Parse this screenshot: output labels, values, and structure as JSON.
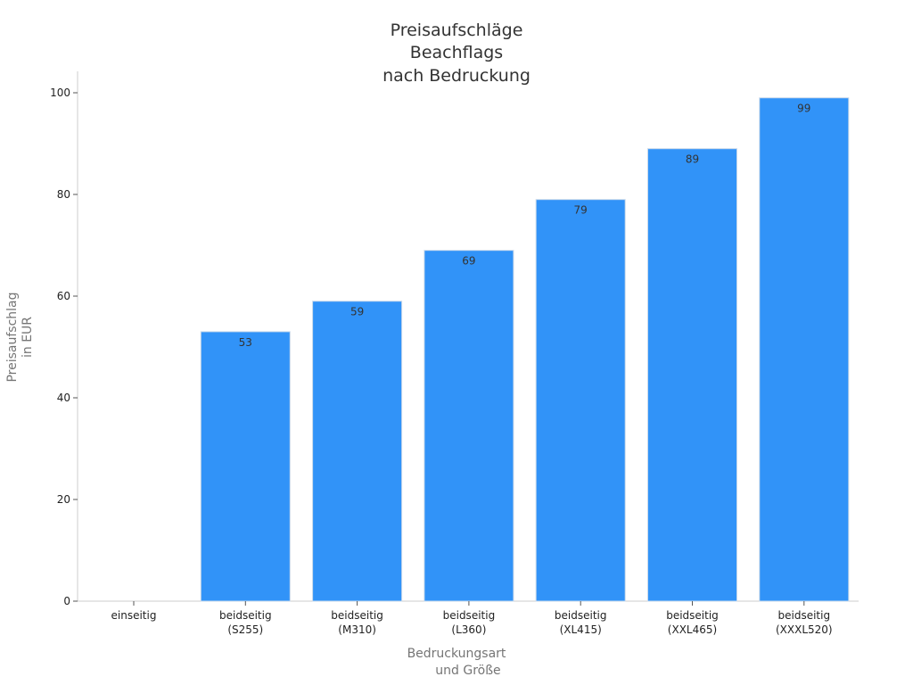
{
  "chart_data": {
    "type": "bar",
    "title_lines": [
      "Preisaufschläge",
      "Beachflags",
      "nach Bedruckung"
    ],
    "xlabel_lines": [
      "Bedruckungsart",
      "und Größe"
    ],
    "ylabel_lines": [
      "Preisaufschlag",
      "in EUR"
    ],
    "categories": [
      [
        "einseitig"
      ],
      [
        "beidseitig",
        "(S255)"
      ],
      [
        "beidseitig",
        "(M310)"
      ],
      [
        "beidseitig",
        "(L360)"
      ],
      [
        "beidseitig",
        "(XL415)"
      ],
      [
        "beidseitig",
        "(XXL465)"
      ],
      [
        "beidseitig",
        "(XXXL520)"
      ]
    ],
    "values": [
      0,
      53,
      59,
      69,
      79,
      89,
      99
    ],
    "data_labels": [
      "",
      "53",
      "59",
      "69",
      "79",
      "89",
      "99"
    ],
    "yticks": [
      0,
      20,
      40,
      60,
      80,
      100
    ],
    "ylim": [
      0,
      104
    ],
    "grid": false,
    "legend": "none",
    "bar_color": "#3193f8"
  }
}
